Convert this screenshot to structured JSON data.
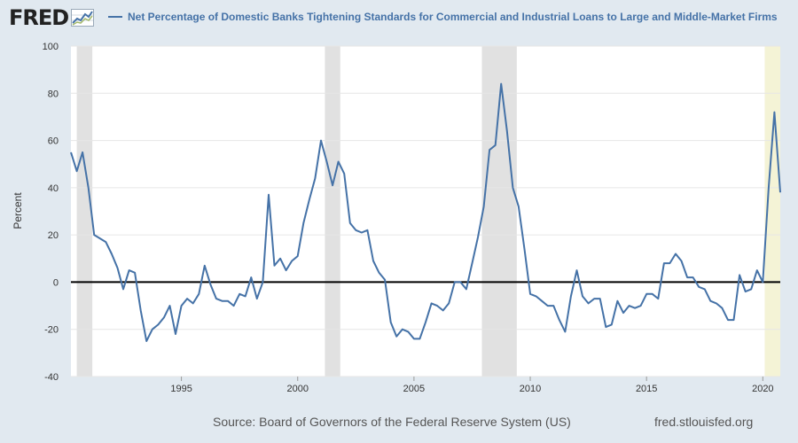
{
  "header": {
    "logo_text": "FRED",
    "legend_label": "Net Percentage of Domestic Banks Tightening Standards for Commercial and Industrial Loans to Large and Middle-Market Firms"
  },
  "footer": {
    "source": "Source: Board of Governors of the Federal Reserve System (US)",
    "site": "fred.stlouisfed.org"
  },
  "colors": {
    "line": "#4572a7",
    "background": "#e1e9f0",
    "plot": "#ffffff",
    "recession": "#e1e1e1",
    "highlight": "#f4f3d6"
  },
  "chart_data": {
    "type": "line",
    "title": "",
    "xlabel": "",
    "ylabel": "Percent",
    "xlim": [
      1990.25,
      2020.75
    ],
    "ylim": [
      -40,
      100
    ],
    "yticks": [
      -40,
      -20,
      0,
      20,
      40,
      60,
      80,
      100
    ],
    "xticks": [
      1995,
      2000,
      2005,
      2010,
      2015,
      2020
    ],
    "grid": true,
    "recessions": [
      [
        1990.5,
        1991.17
      ],
      [
        2001.17,
        2001.83
      ],
      [
        2007.92,
        2009.42
      ]
    ],
    "highlight_band": [
      2020.08,
      2020.75
    ],
    "series": [
      {
        "name": "Net Percentage of Domestic Banks Tightening Standards for Commercial and Industrial Loans to Large and Middle-Market Firms",
        "points": [
          [
            1990.25,
            55
          ],
          [
            1990.5,
            47
          ],
          [
            1990.75,
            55
          ],
          [
            1991.0,
            40
          ],
          [
            1991.25,
            20
          ],
          [
            1991.75,
            17
          ],
          [
            1992.0,
            12
          ],
          [
            1992.25,
            6
          ],
          [
            1992.5,
            -3
          ],
          [
            1992.75,
            5
          ],
          [
            1993.0,
            4
          ],
          [
            1993.25,
            -12
          ],
          [
            1993.5,
            -25
          ],
          [
            1993.75,
            -20
          ],
          [
            1994.0,
            -18
          ],
          [
            1994.25,
            -15
          ],
          [
            1994.5,
            -10
          ],
          [
            1994.75,
            -22
          ],
          [
            1995.0,
            -10
          ],
          [
            1995.25,
            -7
          ],
          [
            1995.5,
            -9
          ],
          [
            1995.75,
            -5
          ],
          [
            1996.0,
            7
          ],
          [
            1996.25,
            -1
          ],
          [
            1996.5,
            -7
          ],
          [
            1996.75,
            -8
          ],
          [
            1997.0,
            -8
          ],
          [
            1997.25,
            -10
          ],
          [
            1997.5,
            -5
          ],
          [
            1997.75,
            -6
          ],
          [
            1998.0,
            2
          ],
          [
            1998.25,
            -7
          ],
          [
            1998.5,
            0
          ],
          [
            1998.75,
            37
          ],
          [
            1999.0,
            7
          ],
          [
            1999.25,
            10
          ],
          [
            1999.5,
            5
          ],
          [
            1999.75,
            9
          ],
          [
            2000.0,
            11
          ],
          [
            2000.25,
            25
          ],
          [
            2000.5,
            35
          ],
          [
            2000.75,
            44
          ],
          [
            2001.0,
            60
          ],
          [
            2001.25,
            51
          ],
          [
            2001.5,
            41
          ],
          [
            2001.75,
            51
          ],
          [
            2002.0,
            46
          ],
          [
            2002.25,
            25
          ],
          [
            2002.5,
            22
          ],
          [
            2002.75,
            21
          ],
          [
            2003.0,
            22
          ],
          [
            2003.25,
            9
          ],
          [
            2003.5,
            4
          ],
          [
            2003.75,
            1
          ],
          [
            2004.0,
            -17
          ],
          [
            2004.25,
            -23
          ],
          [
            2004.5,
            -20
          ],
          [
            2004.75,
            -21
          ],
          [
            2005.0,
            -24
          ],
          [
            2005.25,
            -24
          ],
          [
            2005.5,
            -17
          ],
          [
            2005.75,
            -9
          ],
          [
            2006.0,
            -10
          ],
          [
            2006.25,
            -12
          ],
          [
            2006.5,
            -9
          ],
          [
            2006.75,
            0
          ],
          [
            2007.0,
            0
          ],
          [
            2007.25,
            -3
          ],
          [
            2007.5,
            8
          ],
          [
            2007.75,
            19
          ],
          [
            2008.0,
            32
          ],
          [
            2008.25,
            56
          ],
          [
            2008.5,
            58
          ],
          [
            2008.75,
            84
          ],
          [
            2009.0,
            64
          ],
          [
            2009.25,
            40
          ],
          [
            2009.5,
            32
          ],
          [
            2009.75,
            14
          ],
          [
            2010.0,
            -5
          ],
          [
            2010.25,
            -6
          ],
          [
            2010.5,
            -8
          ],
          [
            2010.75,
            -10
          ],
          [
            2011.0,
            -10
          ],
          [
            2011.25,
            -16
          ],
          [
            2011.5,
            -21
          ],
          [
            2011.75,
            -6
          ],
          [
            2012.0,
            5
          ],
          [
            2012.25,
            -6
          ],
          [
            2012.5,
            -9
          ],
          [
            2012.75,
            -7
          ],
          [
            2013.0,
            -7
          ],
          [
            2013.25,
            -19
          ],
          [
            2013.5,
            -18
          ],
          [
            2013.75,
            -8
          ],
          [
            2014.0,
            -13
          ],
          [
            2014.25,
            -10
          ],
          [
            2014.5,
            -11
          ],
          [
            2014.75,
            -10
          ],
          [
            2015.0,
            -5
          ],
          [
            2015.25,
            -5
          ],
          [
            2015.5,
            -7
          ],
          [
            2015.75,
            8
          ],
          [
            2016.0,
            8
          ],
          [
            2016.25,
            12
          ],
          [
            2016.5,
            9
          ],
          [
            2016.75,
            2
          ],
          [
            2017.0,
            2
          ],
          [
            2017.25,
            -2
          ],
          [
            2017.5,
            -3
          ],
          [
            2017.75,
            -8
          ],
          [
            2018.0,
            -9
          ],
          [
            2018.25,
            -11
          ],
          [
            2018.5,
            -16
          ],
          [
            2018.75,
            -16
          ],
          [
            2019.0,
            3
          ],
          [
            2019.25,
            -4
          ],
          [
            2019.5,
            -3
          ],
          [
            2019.75,
            5
          ],
          [
            2020.0,
            0
          ],
          [
            2020.25,
            40
          ],
          [
            2020.5,
            72
          ],
          [
            2020.75,
            38
          ]
        ]
      }
    ]
  }
}
